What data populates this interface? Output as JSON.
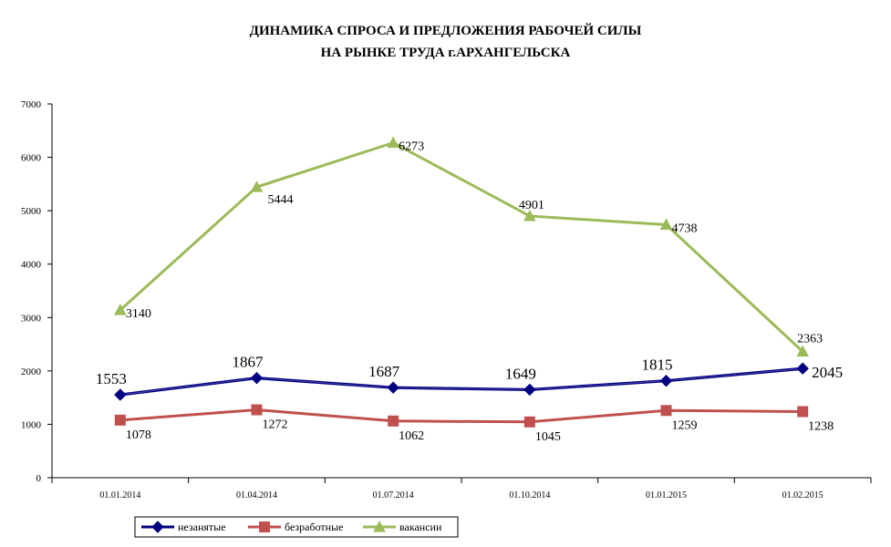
{
  "title_line1": "ДИНАМИКА СПРОСА И ПРЕДЛОЖЕНИЯ РАБОЧЕЙ СИЛЫ",
  "title_line2": "НА РЫНКЕ ТРУДА г.АРХАНГЕЛЬСКА",
  "chart_data": {
    "type": "line",
    "title": "ДИНАМИКА СПРОСА И ПРЕДЛОЖЕНИЯ РАБОЧЕЙ СИЛЫ НА РЫНКЕ ТРУДА г.АРХАНГЕЛЬСКА",
    "categories": [
      "01.01.2014",
      "01.04.2014",
      "01.07.2014",
      "01.10.2014",
      "01.01.2015",
      "01.02.2015"
    ],
    "ylim": [
      0,
      7000
    ],
    "yticks": [
      0,
      1000,
      2000,
      3000,
      4000,
      5000,
      6000,
      7000
    ],
    "grid": false,
    "legend_position": "bottom",
    "series": [
      {
        "name": "незанятые",
        "values": [
          1553,
          1867,
          1687,
          1649,
          1815,
          2045
        ],
        "color": "#000080",
        "marker": "diamond"
      },
      {
        "name": "безработные",
        "values": [
          1078,
          1272,
          1062,
          1045,
          1259,
          1238
        ],
        "color": "#C0504D",
        "marker": "square"
      },
      {
        "name": "вакансии",
        "values": [
          3140,
          5444,
          6273,
          4901,
          4738,
          2363
        ],
        "color": "#9BBB59",
        "marker": "triangle"
      }
    ]
  }
}
